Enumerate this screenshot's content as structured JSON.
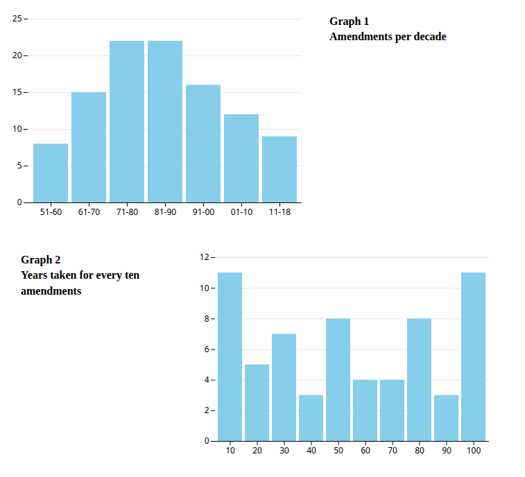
{
  "chart_data": [
    {
      "type": "bar",
      "title": "Graph 1",
      "subtitle": "Amendments per decade",
      "categories": [
        "51-60",
        "61-70",
        "71-80",
        "81-90",
        "91-00",
        "01-10",
        "11-18"
      ],
      "values": [
        8,
        15,
        22,
        22,
        16,
        12,
        9
      ],
      "color": "#87CEEB",
      "ylim": [
        0,
        25
      ],
      "yticks": [
        0,
        5,
        10,
        15,
        20,
        25
      ],
      "grid": true
    },
    {
      "type": "bar",
      "title": "Graph 2",
      "subtitle": "Years taken for every ten amendments",
      "categories": [
        "10",
        "20",
        "30",
        "40",
        "50",
        "60",
        "70",
        "80",
        "90",
        "100"
      ],
      "values": [
        11,
        5,
        7,
        3,
        8,
        4,
        4,
        8,
        3,
        11
      ],
      "color": "#87CEEB",
      "ylim": [
        0,
        12
      ],
      "yticks": [
        0,
        2,
        4,
        6,
        8,
        10,
        12
      ],
      "grid": true
    }
  ]
}
